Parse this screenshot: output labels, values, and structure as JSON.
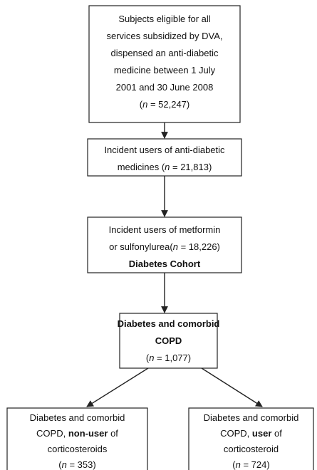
{
  "nodes": [
    {
      "lines": [
        [
          "Subjects eligible for all"
        ],
        [
          "services subsidized by DVA,"
        ],
        [
          "dispensed an anti-diabetic"
        ],
        [
          "medicine between 1 July"
        ],
        [
          "2001 and 30 June 2008"
        ],
        [
          "(",
          "n",
          " = 52,247)"
        ]
      ]
    },
    {
      "lines": [
        [
          "Incident users of anti-diabetic"
        ],
        [
          "medicines (",
          "n",
          " = 21,813)"
        ]
      ]
    },
    {
      "lines": [
        [
          "Incident users of metformin"
        ],
        [
          "or sulfonylurea(",
          "n",
          " = 18,226)"
        ],
        [
          "Diabetes Cohort"
        ]
      ]
    },
    {
      "lines": [
        [
          "Diabetes and comorbid"
        ],
        [
          "COPD"
        ],
        [
          "(",
          "n",
          " = 1,077)"
        ]
      ]
    },
    {
      "lines": [
        [
          "Diabetes and comorbid"
        ],
        [
          "COPD, ",
          "non-user",
          " of"
        ],
        [
          "corticosteroids"
        ],
        [
          "(",
          "n",
          " = 353)"
        ]
      ]
    },
    {
      "lines": [
        [
          "Diabetes and comorbid"
        ],
        [
          "COPD, ",
          "user",
          " of"
        ],
        [
          "corticosteroid"
        ],
        [
          "(",
          "n",
          " = 724)"
        ]
      ]
    }
  ]
}
